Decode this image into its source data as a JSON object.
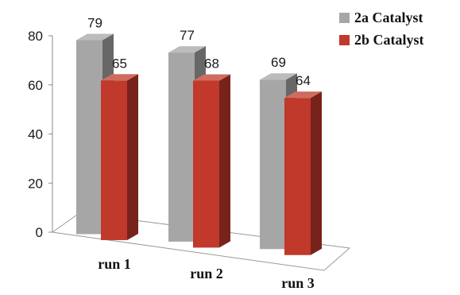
{
  "chart_data": {
    "type": "bar",
    "title": "",
    "xlabel": "",
    "ylabel": "",
    "categories": [
      "run 1",
      "run 2",
      "run 3"
    ],
    "series": [
      {
        "name": "2a Catalyst",
        "values": [
          79,
          77,
          69
        ],
        "color": "#a6a6a6"
      },
      {
        "name": "2b Catalyst",
        "values": [
          65,
          68,
          64
        ],
        "color": "#c0392b"
      }
    ],
    "ylim": [
      0,
      80
    ],
    "yticks": [
      0,
      20,
      40,
      60,
      80
    ],
    "grid": false,
    "legend": "top-right",
    "style": "3d-clustered-column"
  }
}
